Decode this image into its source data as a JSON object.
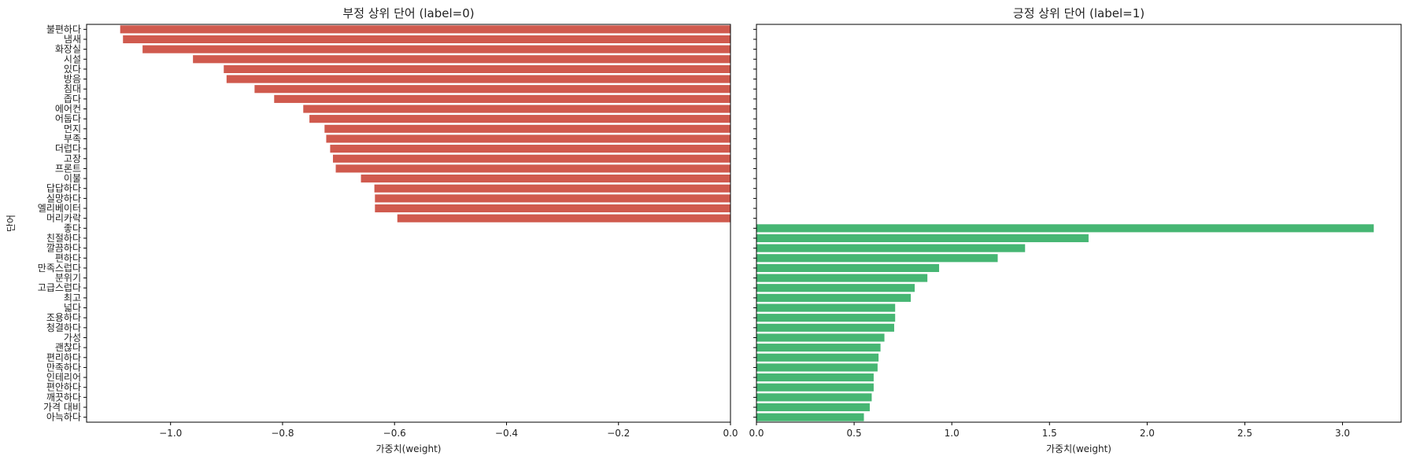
{
  "chart_data": [
    {
      "type": "bar",
      "orientation": "horizontal",
      "title": "부정 상위 단어 (label=0)",
      "xlabel": "가중치(weight)",
      "ylabel": "단어",
      "xlim": [
        -1.15,
        0.0
      ],
      "xticks": [
        -1.0,
        -0.8,
        -0.6,
        -0.4,
        -0.2,
        0.0
      ],
      "xtick_labels": [
        "−1.0",
        "−0.8",
        "−0.6",
        "−0.4",
        "−0.2",
        "0.0"
      ],
      "bar_color": "#d05a4e",
      "grid": false,
      "data": [
        {
          "category": "불편하다",
          "value": -1.09
        },
        {
          "category": "냄새",
          "value": -1.085
        },
        {
          "category": "화장실",
          "value": -1.05
        },
        {
          "category": "시설",
          "value": -0.96
        },
        {
          "category": "있다",
          "value": -0.905
        },
        {
          "category": "방음",
          "value": -0.9
        },
        {
          "category": "침대",
          "value": -0.85
        },
        {
          "category": "좁다",
          "value": -0.815
        },
        {
          "category": "에어컨",
          "value": -0.763
        },
        {
          "category": "어둡다",
          "value": -0.752
        },
        {
          "category": "먼지",
          "value": -0.725
        },
        {
          "category": "부족",
          "value": -0.722
        },
        {
          "category": "더럽다",
          "value": -0.715
        },
        {
          "category": "고장",
          "value": -0.71
        },
        {
          "category": "프론트",
          "value": -0.705
        },
        {
          "category": "이불",
          "value": -0.66
        },
        {
          "category": "답답하다",
          "value": -0.636
        },
        {
          "category": "실망하다",
          "value": -0.635
        },
        {
          "category": "엘리베이터",
          "value": -0.635
        },
        {
          "category": "머리카락",
          "value": -0.595
        }
      ]
    },
    {
      "type": "bar",
      "orientation": "horizontal",
      "title": "긍정 상위 단어 (label=1)",
      "xlabel": "가중치(weight)",
      "xlim": [
        0.0,
        3.3
      ],
      "xticks": [
        0.0,
        0.5,
        1.0,
        1.5,
        2.0,
        2.5,
        3.0
      ],
      "xtick_labels": [
        "0.0",
        "0.5",
        "1.0",
        "1.5",
        "2.0",
        "2.5",
        "3.0"
      ],
      "bar_color": "#46b673",
      "grid": false,
      "data": [
        {
          "category": "좋다",
          "value": 3.16
        },
        {
          "category": "친절하다",
          "value": 1.7
        },
        {
          "category": "깔끔하다",
          "value": 1.375
        },
        {
          "category": "편하다",
          "value": 1.235
        },
        {
          "category": "만족스럽다",
          "value": 0.935
        },
        {
          "category": "분위기",
          "value": 0.875
        },
        {
          "category": "고급스럽다",
          "value": 0.81
        },
        {
          "category": "최고",
          "value": 0.79
        },
        {
          "category": "넓다",
          "value": 0.71
        },
        {
          "category": "조용하다",
          "value": 0.71
        },
        {
          "category": "청결하다",
          "value": 0.705
        },
        {
          "category": "가성",
          "value": 0.655
        },
        {
          "category": "괜찮다",
          "value": 0.635
        },
        {
          "category": "편리하다",
          "value": 0.625
        },
        {
          "category": "만족하다",
          "value": 0.62
        },
        {
          "category": "인테리어",
          "value": 0.6
        },
        {
          "category": "편안하다",
          "value": 0.6
        },
        {
          "category": "깨끗하다",
          "value": 0.59
        },
        {
          "category": "가격 대비",
          "value": 0.58
        },
        {
          "category": "아늑하다",
          "value": 0.55
        }
      ]
    }
  ]
}
